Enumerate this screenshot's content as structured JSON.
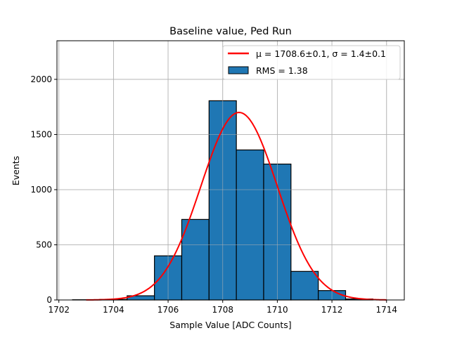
{
  "chart_data": {
    "type": "bar",
    "title": "Baseline value, Ped Run",
    "xlabel": "Sample Value [ADC Counts]",
    "ylabel": "Events",
    "xlim": [
      1701.93,
      1714.65
    ],
    "ylim": [
      0,
      2350
    ],
    "xticks": [
      1702,
      1704,
      1706,
      1708,
      1710,
      1712,
      1714
    ],
    "yticks": [
      0,
      500,
      1000,
      1500,
      2000
    ],
    "grid": true,
    "legend_position": "top-right",
    "histogram": {
      "name": "RMS = 1.38",
      "bin_edges": [
        1702.5,
        1703.5,
        1704.5,
        1705.5,
        1706.5,
        1707.5,
        1708.5,
        1709.5,
        1710.5,
        1711.5,
        1712.5,
        1713.5
      ],
      "values": [
        2,
        5,
        38,
        400,
        730,
        1806,
        1360,
        1232,
        259,
        85,
        9
      ],
      "color": "#1f77b4"
    },
    "fit": {
      "name": "μ = 1708.6±0.1, σ = 1.4±0.1",
      "mu": 1708.6,
      "sigma": 1.4,
      "amplitude": 1700,
      "x_range": [
        1703,
        1714
      ],
      "color": "#ff0000"
    }
  }
}
